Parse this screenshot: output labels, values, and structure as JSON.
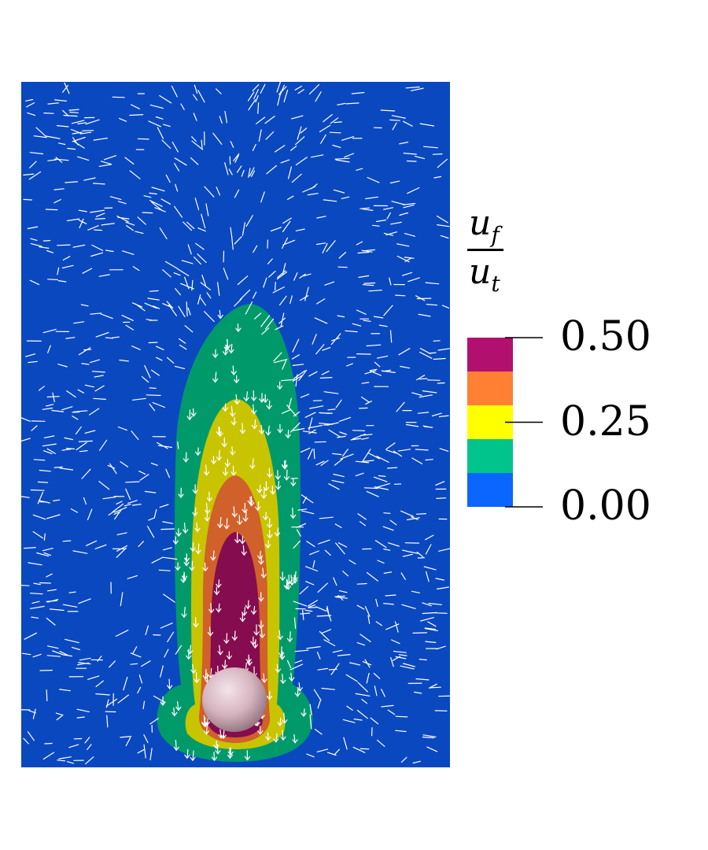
{
  "chart_data": {
    "type": "heatmap",
    "title": "",
    "variable": {
      "numerator": "u",
      "numerator_sub": "f",
      "denominator": "u",
      "denominator_sub": "t"
    },
    "colorbar": {
      "ticks": [
        "0.50",
        "0.25",
        "0.00"
      ],
      "range": [
        0,
        0.5
      ],
      "bins": [
        {
          "from": 0.0,
          "to": 0.1,
          "color": "#0a66ff"
        },
        {
          "from": 0.1,
          "to": 0.2,
          "color": "#00c48c"
        },
        {
          "from": 0.2,
          "to": 0.3,
          "color": "#ffff00"
        },
        {
          "from": 0.3,
          "to": 0.4,
          "color": "#ff7f33"
        },
        {
          "from": 0.4,
          "to": 0.5,
          "color": "#b1106e"
        }
      ]
    },
    "field_colors": {
      "background": "#0a48c0",
      "level_1": "#009a6a",
      "level_2": "#c8c400",
      "level_3": "#d0612a",
      "level_4": "#850c4f",
      "sphere": "#d6b4bf",
      "vectors": "#ffffff"
    }
  }
}
